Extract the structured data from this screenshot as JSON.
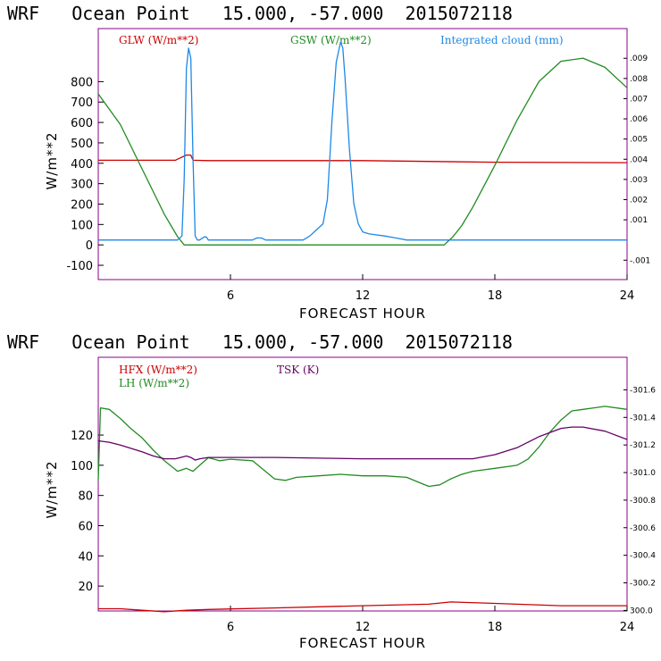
{
  "chart_data": [
    {
      "type": "line",
      "title": "WRF   Ocean Point   15.000, -57.000  2015072118",
      "xlabel": "FORECAST HOUR",
      "ylabel": "W/m**2",
      "xlim": [
        0,
        24
      ],
      "ylim": [
        -170,
        1060
      ],
      "yticks": [
        -100,
        0,
        100,
        200,
        300,
        400,
        500,
        600,
        700,
        800
      ],
      "xticks": [
        6,
        12,
        18,
        24
      ],
      "y2lim": [
        -0.00196,
        0.01047
      ],
      "y2ticks": [
        {
          "v": -0.001,
          "label": "-.001"
        },
        {
          "v": 0.001,
          "label": ".001"
        },
        {
          "v": 0.002,
          "label": ".002"
        },
        {
          "v": 0.003,
          "label": ".003"
        },
        {
          "v": 0.004,
          "label": ".004"
        },
        {
          "v": 0.005,
          "label": ".005"
        },
        {
          "v": 0.006,
          "label": ".006"
        },
        {
          "v": 0.007,
          "label": ".007"
        },
        {
          "v": 0.008,
          "label": ".008"
        },
        {
          "v": 0.009,
          "label": ".009"
        }
      ],
      "series": [
        {
          "name": "GLW (W/m**2)",
          "color": "#cc0000",
          "axis": "left",
          "x": [
            0,
            2,
            3.5,
            3.6,
            4,
            4.2,
            4.3,
            5,
            8,
            12,
            18,
            24
          ],
          "values": [
            415,
            415,
            415,
            420,
            440,
            440,
            415,
            413,
            413,
            413,
            405,
            403
          ]
        },
        {
          "name": "GSW (W/m**2)",
          "color": "#228b22",
          "axis": "left",
          "x": [
            0,
            1,
            2,
            3,
            3.6,
            3.9,
            4.3,
            15.7,
            16.1,
            16.5,
            17,
            18,
            19,
            20,
            21,
            22,
            23,
            24
          ],
          "values": [
            740,
            590,
            370,
            150,
            40,
            0,
            0,
            0,
            40,
            95,
            185,
            390,
            610,
            800,
            900,
            915,
            870,
            770
          ]
        },
        {
          "name": "Integrated cloud (mm)",
          "color": "#1e88e5",
          "axis": "right",
          "x": [
            0,
            3.6,
            3.8,
            3.9,
            4.0,
            4.1,
            4.2,
            4.3,
            4.4,
            4.5,
            4.6,
            4.8,
            4.9,
            5.0,
            5.1,
            5.3,
            7.0,
            7.2,
            7.4,
            7.6,
            8.0,
            9.3,
            9.6,
            9.9,
            10.2,
            10.4,
            10.6,
            10.8,
            11.0,
            11.1,
            11.2,
            11.4,
            11.6,
            11.8,
            12.0,
            12.3,
            13.0,
            13.5,
            14.0,
            15.0,
            24
          ],
          "values": [
            0,
            0,
            0.0002,
            0.003,
            0.0085,
            0.0095,
            0.009,
            0.004,
            0.0002,
            0,
            0,
            0.00015,
            0.00015,
            0,
            0,
            0,
            0,
            0.0001,
            0.0001,
            0,
            0,
            0,
            0.0002,
            0.0005,
            0.0008,
            0.002,
            0.0058,
            0.0088,
            0.0098,
            0.0095,
            0.008,
            0.0045,
            0.0018,
            0.0008,
            0.0004,
            0.0003,
            0.0002,
            0.0001,
            0,
            0,
            0
          ]
        }
      ]
    },
    {
      "type": "line",
      "title": "WRF   Ocean Point   15.000, -57.000  2015072118",
      "xlabel": "FORECAST HOUR",
      "ylabel": "W/m**2",
      "xlim": [
        0,
        24
      ],
      "ylim": [
        3.5,
        171.5
      ],
      "yticks": [
        20,
        40,
        60,
        80,
        100,
        120
      ],
      "xticks": [
        6,
        12,
        18,
        24
      ],
      "y2lim": [
        299.996,
        301.836
      ],
      "y2ticks": [
        {
          "v": 300.0,
          "label": "300.0"
        },
        {
          "v": 300.2,
          "label": "-300.2"
        },
        {
          "v": 300.4,
          "label": "-300.4"
        },
        {
          "v": 300.6,
          "label": "-300.6"
        },
        {
          "v": 300.8,
          "label": "-300.8"
        },
        {
          "v": 301.0,
          "label": "-301.0"
        },
        {
          "v": 301.2,
          "label": "-301.2"
        },
        {
          "v": 301.4,
          "label": "-301.4"
        },
        {
          "v": 301.6,
          "label": "-301.6"
        }
      ],
      "series": [
        {
          "name": "HFX (W/m**2)",
          "color": "#cc0000",
          "axis": "left",
          "x": [
            0,
            1,
            2,
            3,
            4,
            5,
            8,
            12,
            15,
            16,
            18,
            21,
            24
          ],
          "values": [
            5,
            5,
            4,
            3,
            4,
            4.5,
            5.5,
            7,
            8,
            9.5,
            8.5,
            7,
            7
          ]
        },
        {
          "name": "LH (W/m**2)",
          "color": "#228b22",
          "axis": "left",
          "x": [
            0,
            0.1,
            0.5,
            1,
            1.5,
            2,
            2.5,
            3,
            3.6,
            4,
            4.3,
            4.6,
            5,
            5.5,
            6,
            7,
            7.5,
            8,
            8.5,
            9,
            10,
            11,
            12,
            13,
            14,
            14.5,
            15,
            15.5,
            16,
            16.5,
            17,
            18,
            19,
            19.5,
            20,
            20.5,
            21,
            21.5,
            22,
            22.5,
            23,
            24
          ],
          "values": [
            90,
            138,
            137,
            131,
            124,
            118,
            110,
            103,
            96,
            98,
            96,
            100,
            105,
            103,
            104,
            103,
            97,
            91,
            90,
            92,
            93,
            94,
            93,
            93,
            92,
            89,
            86,
            87,
            91,
            94,
            96,
            98,
            100,
            104,
            112,
            122,
            130,
            136,
            137,
            138,
            139,
            137
          ]
        },
        {
          "name": "TSK (K)",
          "color": "#660066",
          "axis": "right",
          "x": [
            0,
            0.5,
            1,
            2,
            2.5,
            3,
            3.5,
            4,
            4.2,
            4.4,
            4.6,
            5,
            8,
            12,
            15,
            17,
            18,
            19,
            20,
            21,
            21.5,
            22,
            23,
            24
          ],
          "values": [
            301.23,
            301.22,
            301.2,
            301.15,
            301.12,
            301.1,
            301.1,
            301.12,
            301.11,
            301.09,
            301.1,
            301.11,
            301.11,
            301.1,
            301.1,
            301.1,
            301.13,
            301.18,
            301.26,
            301.32,
            301.33,
            301.33,
            301.3,
            301.24
          ]
        }
      ]
    }
  ]
}
